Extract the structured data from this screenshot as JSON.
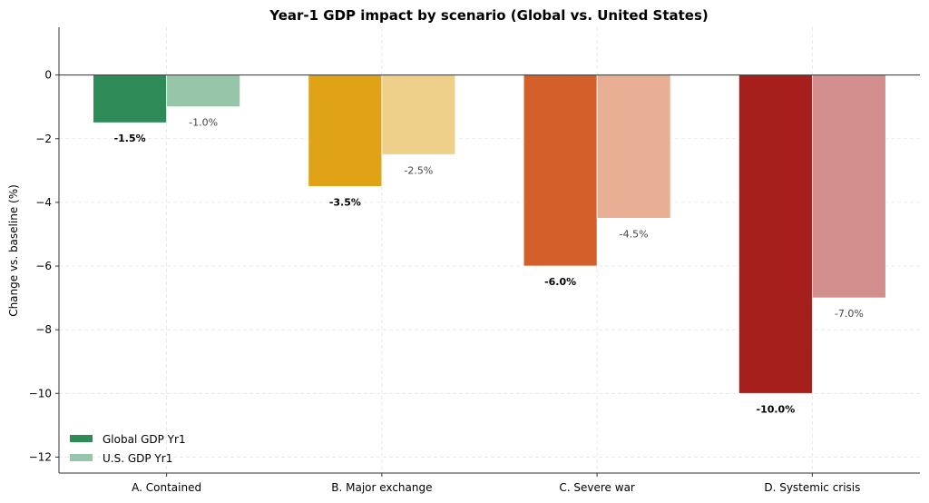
{
  "chart_data": {
    "type": "bar",
    "title": "Year-1 GDP impact by scenario (Global vs. United States)",
    "xlabel": "",
    "ylabel": "Change vs. baseline (%)",
    "ylim": [
      -12.5,
      1.5
    ],
    "yticks": [
      0,
      -2,
      -4,
      -6,
      -8,
      -10,
      -12
    ],
    "ytick_labels": [
      "0",
      "−2",
      "−4",
      "−6",
      "−8",
      "−10",
      "−12"
    ],
    "grid": true,
    "legend_position": "lower-left",
    "categories": [
      "A. Contained",
      "B. Major exchange",
      "C. Severe war",
      "D. Systemic crisis"
    ],
    "series": [
      {
        "name": "Global GDP Yr1",
        "values": [
          -1.5,
          -3.5,
          -6.0,
          -10.0
        ],
        "labels": [
          "-1.5%",
          "-3.5%",
          "-6.0%",
          "-10.0%"
        ],
        "colors": [
          "#2e8b57",
          "#e0a317",
          "#d35f2b",
          "#a61f1c"
        ]
      },
      {
        "name": "U.S. GDP Yr1",
        "values": [
          -1.0,
          -2.5,
          -4.5,
          -7.0
        ],
        "labels": [
          "-1.0%",
          "-2.5%",
          "-4.5%",
          "-7.0%"
        ],
        "colors": [
          "#97c5aa",
          "#efd08b",
          "#e9af95",
          "#d38f8d"
        ]
      }
    ]
  }
}
